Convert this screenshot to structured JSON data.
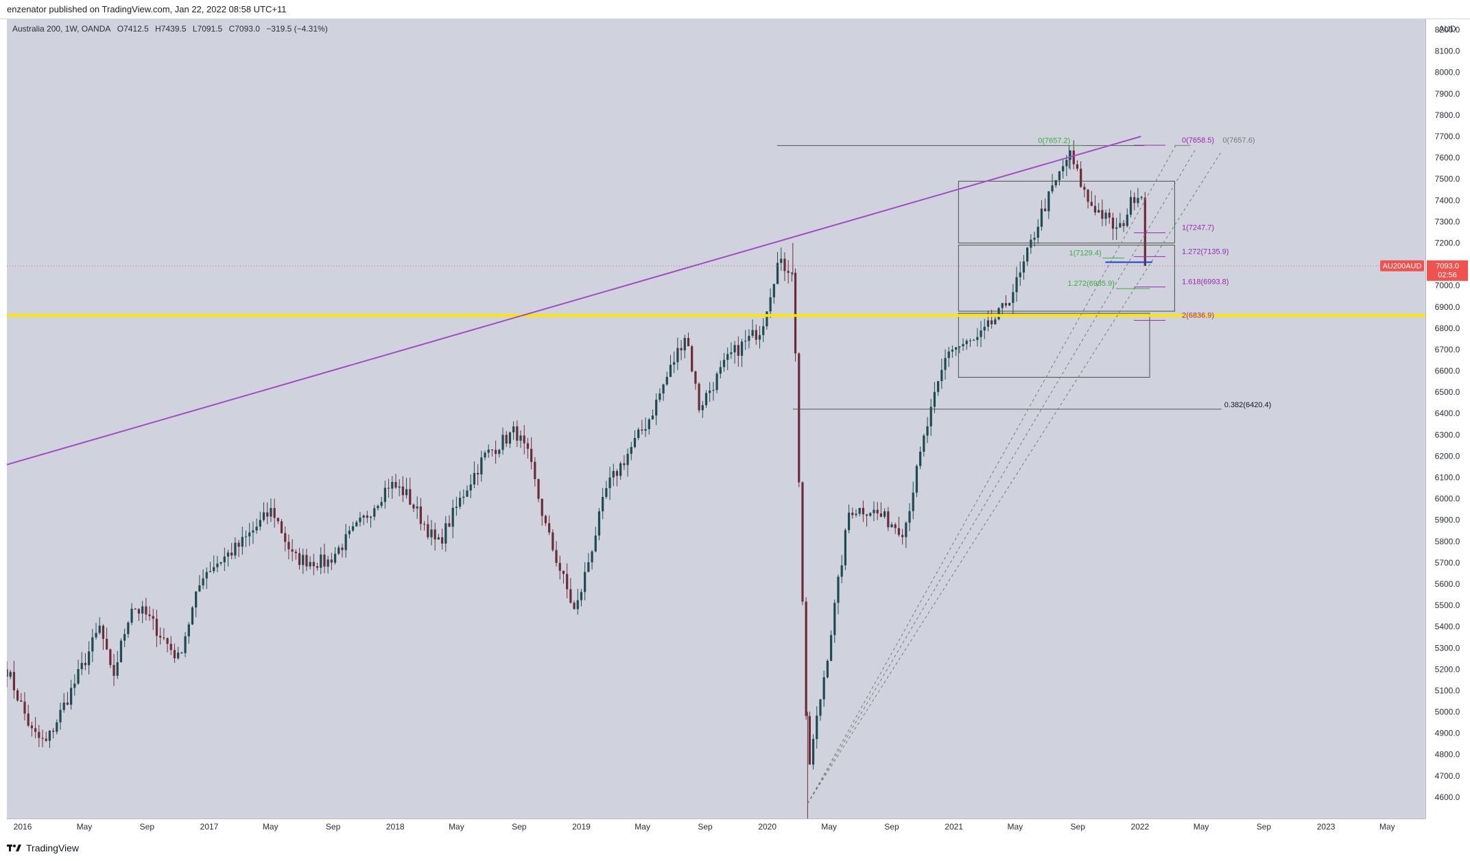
{
  "header": {
    "published_by": "enzenator published on TradingView.com, Jan 22, 2022 08:58 UTC+11"
  },
  "symbol": {
    "title": "Australia 200, 1W, OANDA",
    "open": "O7412.5",
    "high": "H7439.5",
    "low": "L7091.5",
    "close": "C7093.0",
    "change": "−319.5 (−4.31%)"
  },
  "price_axis": {
    "currency": "AUD",
    "ticks": [
      "8200.0",
      "8100.0",
      "8000.0",
      "7900.0",
      "7800.0",
      "7700.0",
      "7600.0",
      "7500.0",
      "7400.0",
      "7300.0",
      "7200.0",
      "7100.0",
      "7000.0",
      "6900.0",
      "6800.0",
      "6700.0",
      "6600.0",
      "6500.0",
      "6400.0",
      "6300.0",
      "6200.0",
      "6100.0",
      "6000.0",
      "5900.0",
      "5800.0",
      "5700.0",
      "5600.0",
      "5500.0",
      "5400.0",
      "5300.0",
      "5200.0",
      "5100.0",
      "5000.0",
      "4900.0",
      "4800.0",
      "4700.0",
      "4600.0"
    ],
    "current_symbol": "AU200AUD",
    "current_price": "7093.0",
    "countdown": "02:56"
  },
  "time_axis": {
    "labels": [
      "2016",
      "May",
      "Sep",
      "2017",
      "May",
      "Sep",
      "2018",
      "May",
      "Sep",
      "2019",
      "May",
      "Sep",
      "2020",
      "May",
      "Sep",
      "2021",
      "May",
      "Sep",
      "2022",
      "May",
      "Sep",
      "2023",
      "May"
    ]
  },
  "annotations": {
    "fib_green": [
      "0(7657.2)",
      "1(7129.4)",
      "1.272(6985.9)"
    ],
    "fib_purple": [
      "0(7658.5)",
      "1(7247.7)",
      "1.272(7135.9)",
      "1.618(6993.8)",
      "2(6836.9)"
    ],
    "fib_gray": [
      "0(7657.6)"
    ],
    "retracement": "0.382(6420.4)"
  },
  "footer": {
    "brand": "TradingView"
  },
  "colors": {
    "chart_bg": "#d0d3de",
    "bull_candle": "#1e4a52",
    "bear_candle": "#6b2c38",
    "trendline": "#a14bc4",
    "support": "#ffe600",
    "fib_green": "#3caa3c",
    "fib_purple": "#9c27b0",
    "price_tag": "#ef5350"
  },
  "chart_data": {
    "type": "candlestick",
    "interval": "1W",
    "ylim": [
      4500,
      8250
    ],
    "xlim": [
      "2015-12-01",
      "2023-07-15"
    ],
    "close_points": [
      [
        "2015-12-01",
        5200
      ],
      [
        "2016-01-20",
        4900
      ],
      [
        "2016-02-15",
        4850
      ],
      [
        "2016-04-15",
        5150
      ],
      [
        "2016-06-01",
        5400
      ],
      [
        "2016-06-25",
        5150
      ],
      [
        "2016-08-01",
        5500
      ],
      [
        "2016-09-01",
        5450
      ],
      [
        "2016-11-01",
        5250
      ],
      [
        "2016-12-20",
        5650
      ],
      [
        "2017-03-01",
        5780
      ],
      [
        "2017-05-05",
        5950
      ],
      [
        "2017-06-15",
        5720
      ],
      [
        "2017-08-20",
        5700
      ],
      [
        "2017-10-30",
        5900
      ],
      [
        "2017-12-20",
        6070
      ],
      [
        "2018-01-20",
        6030
      ],
      [
        "2018-03-25",
        5780
      ],
      [
        "2018-05-20",
        6050
      ],
      [
        "2018-06-25",
        6200
      ],
      [
        "2018-08-25",
        6320
      ],
      [
        "2018-09-20",
        6190
      ],
      [
        "2018-10-25",
        5850
      ],
      [
        "2018-12-20",
        5460
      ],
      [
        "2019-02-20",
        6050
      ],
      [
        "2019-05-15",
        6380
      ],
      [
        "2019-07-25",
        6780
      ],
      [
        "2019-08-20",
        6430
      ],
      [
        "2019-10-20",
        6670
      ],
      [
        "2019-12-20",
        6800
      ],
      [
        "2020-01-20",
        7100
      ],
      [
        "2020-02-20",
        7080
      ],
      [
        "2020-03-20",
        4700
      ],
      [
        "2020-04-30",
        5300
      ],
      [
        "2020-06-10",
        5950
      ],
      [
        "2020-07-20",
        5950
      ],
      [
        "2020-09-25",
        5850
      ],
      [
        "2020-11-05",
        6300
      ],
      [
        "2020-12-20",
        6700
      ],
      [
        "2021-02-15",
        6740
      ],
      [
        "2021-04-05",
        6880
      ],
      [
        "2021-05-10",
        7040
      ],
      [
        "2021-06-20",
        7330
      ],
      [
        "2021-08-15",
        7620
      ],
      [
        "2021-09-20",
        7400
      ],
      [
        "2021-10-20",
        7330
      ],
      [
        "2021-11-20",
        7250
      ],
      [
        "2021-12-20",
        7420
      ],
      [
        "2022-01-03",
        7450
      ],
      [
        "2022-01-16",
        7093
      ]
    ],
    "extremes": {
      "covid_low": 4400,
      "pre_covid_high": 7200,
      "ath": 7657.2,
      "last_open": 7412.5,
      "last_high": 7439.5,
      "last_low": 7091.5,
      "last_close": 7093.0
    },
    "trendline": [
      [
        "2015-12-01",
        6160
      ],
      [
        "2022-01-03",
        7700
      ]
    ],
    "horizontal_lines": [
      {
        "price": 6860,
        "color": "#ffe600"
      },
      {
        "price": 7657.2,
        "from": "2020-01-20",
        "to": "2022-01-10"
      },
      {
        "price": 6420.4,
        "from": "2020-02-20",
        "to": "2022-06-10"
      }
    ],
    "dashed_fans": [
      [
        [
          "2020-03-20",
          4570
        ],
        [
          "2022-03-15",
          7670
        ]
      ],
      [
        [
          "2020-03-20",
          4570
        ],
        [
          "2022-04-20",
          7640
        ]
      ],
      [
        [
          "2020-03-20",
          4570
        ],
        [
          "2022-06-10",
          7630
        ]
      ]
    ],
    "rectangles": [
      {
        "from": "2021-01-10",
        "to": "2022-03-10",
        "top": 7490,
        "bottom": 7200
      },
      {
        "from": "2021-01-10",
        "to": "2022-03-10",
        "top": 7190,
        "bottom": 6880
      },
      {
        "from": "2021-01-10",
        "to": "2022-01-20",
        "top": 6870,
        "bottom": 6570
      }
    ],
    "fib_levels": [
      {
        "label": "0(7657.2)",
        "price": 7657.2,
        "from": "2021-08-20",
        "to": "2021-09-10",
        "color": "#3caa3c"
      },
      {
        "label": "1(7129.4)",
        "price": 7129.4,
        "from": "2021-10-20",
        "to": "2021-12-01",
        "color": "#3caa3c"
      },
      {
        "label": "1.272(6985.9)",
        "price": 6985.9,
        "from": "2021-11-15",
        "to": "2022-01-20",
        "color": "#3caa3c"
      },
      {
        "label": "0(7658.5)",
        "price": 7658.5,
        "from": "2021-12-20",
        "to": "2022-02-20",
        "color": "#9c27b0"
      },
      {
        "label": "1(7247.7)",
        "price": 7247.7,
        "from": "2021-12-20",
        "to": "2022-02-20",
        "color": "#9c27b0"
      },
      {
        "label": "1.272(7135.9)",
        "price": 7135.9,
        "from": "2021-12-20",
        "to": "2022-02-20",
        "color": "#9c27b0"
      },
      {
        "label": "1.618(6993.8)",
        "price": 6993.8,
        "from": "2021-12-20",
        "to": "2022-02-20",
        "color": "#9c27b0"
      },
      {
        "label": "2(6836.9)",
        "price": 6836.9,
        "from": "2021-12-20",
        "to": "2022-02-20",
        "color": "#9c27b0"
      },
      {
        "label": "0(7657.6)",
        "price": 7657.6,
        "from": "2022-03-10",
        "to": "2022-04-10",
        "color": "#777777"
      }
    ],
    "support_short": {
      "price": 7110,
      "from": "2021-10-25",
      "to": "2022-01-25",
      "color": "#1a3fcf"
    }
  }
}
